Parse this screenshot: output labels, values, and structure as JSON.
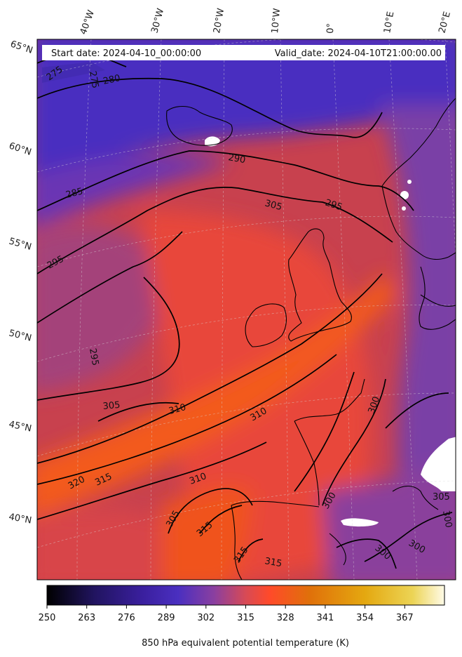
{
  "header": {
    "start_date": "Start date: 2024-04-10_00:00:00",
    "valid_date": "Valid_date: 2024-04-10T21:00:00.00"
  },
  "lon_labels": [
    "40°W",
    "30°W",
    "20°W",
    "10°W",
    "0°",
    "10°E",
    "20°E"
  ],
  "lat_labels": [
    "65°N",
    "60°N",
    "55°N",
    "50°N",
    "45°N",
    "40°N"
  ],
  "contour_labels": [
    "275",
    "275",
    "280",
    "290",
    "285",
    "295",
    "305",
    "295",
    "295",
    "305",
    "310",
    "310",
    "320",
    "315",
    "310",
    "305",
    "315",
    "315",
    "315",
    "300",
    "300",
    "300",
    "300",
    "305",
    "300"
  ],
  "colorbar": {
    "ticks": [
      "250",
      "263",
      "276",
      "289",
      "302",
      "315",
      "328",
      "341",
      "354",
      "367"
    ],
    "title": "850 hPa equivalent potential temperature (K)",
    "colors": [
      "#000000",
      "#211460",
      "#3a1f9e",
      "#4a2fc0",
      "#8a3fa0",
      "#e24a4a",
      "#ff4a2a",
      "#e0700a",
      "#e4a810",
      "#ecd455",
      "#fffbe8"
    ]
  },
  "field_colors": {
    "cold_purple": "#4a2fc0",
    "mid_purple": "#7a3fa6",
    "warm_red": "#e8463a",
    "hot_orange": "#f35a1c"
  }
}
